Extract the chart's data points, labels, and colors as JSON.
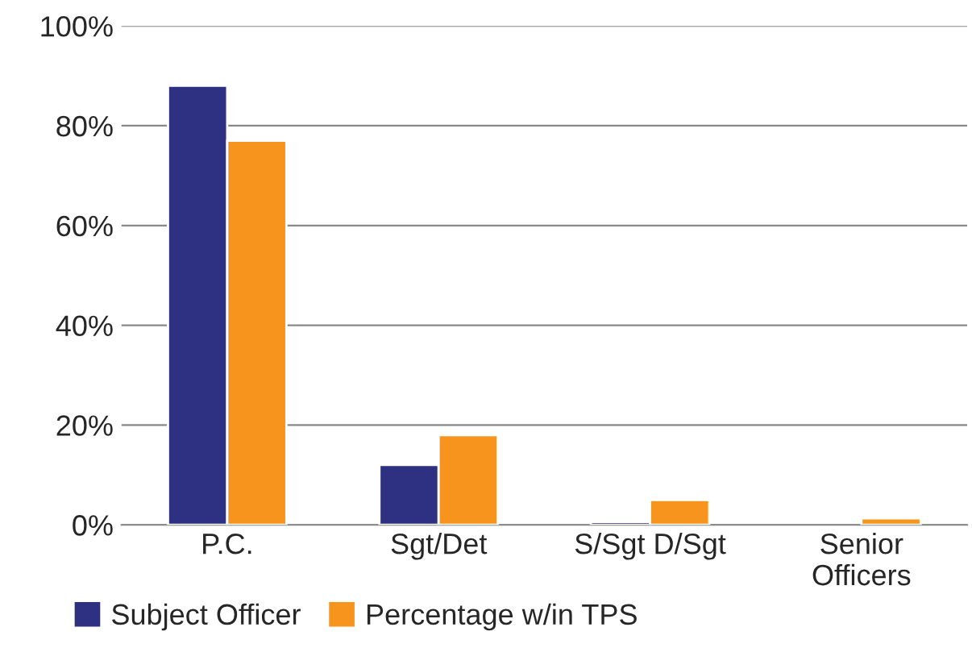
{
  "chart_data": {
    "type": "bar",
    "categories": [
      "P.C.",
      "Sgt/Det",
      "S/Sgt D/Sgt",
      "Senior\nOfficers"
    ],
    "series": [
      {
        "name": "Subject Officer",
        "color": "#2e3182",
        "values": [
          88,
          12,
          0.6,
          null
        ]
      },
      {
        "name": "Percentage w/in TPS",
        "color": "#f7941d",
        "values": [
          77,
          18,
          5,
          1.3
        ]
      }
    ],
    "ylim": [
      0,
      100
    ],
    "yticks": [
      {
        "value": 0,
        "label": "0%"
      },
      {
        "value": 20,
        "label": "20%"
      },
      {
        "value": 40,
        "label": "40%"
      },
      {
        "value": 60,
        "label": "60%"
      },
      {
        "value": 80,
        "label": "80%"
      },
      {
        "value": 100,
        "label": "100%"
      }
    ],
    "grid": "y",
    "legend": "bottom left"
  }
}
